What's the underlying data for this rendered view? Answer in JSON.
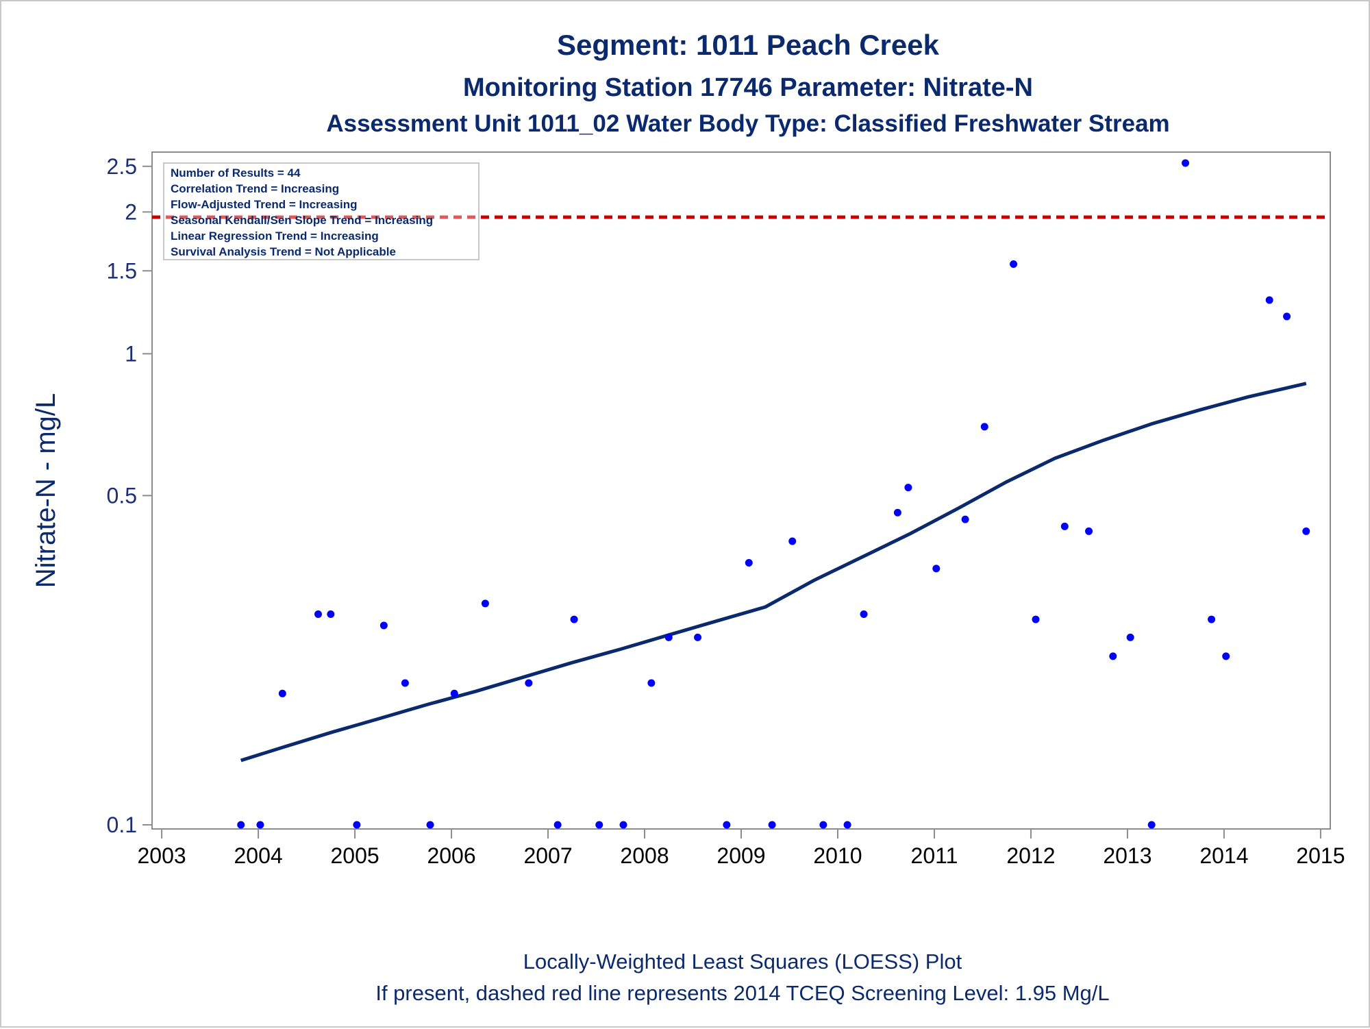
{
  "chart_data": {
    "type": "scatter",
    "title": "Segment: 1011  Peach Creek",
    "subtitle1": "Monitoring Station 17746 Parameter: Nitrate-N",
    "subtitle2": "Assessment Unit 1011_02   Water Body Type: Classified Freshwater Stream",
    "ylabel": "Nitrate-N - mg/L",
    "xlabel": "",
    "yscale": "log",
    "ylim": [
      0.098,
      2.68
    ],
    "xlim": [
      2002.9,
      2015.1
    ],
    "xticks": [
      "2003",
      "2004",
      "2005",
      "2006",
      "2007",
      "2008",
      "2009",
      "2010",
      "2011",
      "2012",
      "2013",
      "2014",
      "2015"
    ],
    "xtick_values": [
      2003,
      2004,
      2005,
      2006,
      2007,
      2008,
      2009,
      2010,
      2011,
      2012,
      2013,
      2014,
      2015
    ],
    "yticks": [
      "0.1",
      "0.5",
      "1",
      "1.5",
      "2",
      "2.5"
    ],
    "ytick_values": [
      0.1,
      0.5,
      1,
      1.5,
      2,
      2.5
    ],
    "grid": false,
    "stats": [
      "Number of Results = 44",
      "Correlation Trend = Increasing",
      "Flow-Adjusted Trend = Increasing",
      "Seasonal Kendall/Sen Slope Trend = Increasing",
      "Linear Regression Trend = Increasing",
      "Survival Analysis Trend = Not Applicable"
    ],
    "stats_placement": "top-left",
    "screening_level": 1.95,
    "screening_color": "#cc0000",
    "point_color": "#0000ff",
    "loess_color": "#0b2a6e",
    "series": [
      {
        "type": "scatter",
        "x": [
          2003.82,
          2004.02,
          2004.25,
          2004.62,
          2004.75,
          2005.02,
          2005.3,
          2005.52,
          2005.78,
          2006.03,
          2006.35,
          2006.8,
          2007.1,
          2007.27,
          2007.53,
          2007.78,
          2008.07,
          2008.25,
          2008.55,
          2008.85,
          2009.08,
          2009.32,
          2009.53,
          2009.85,
          2010.1,
          2010.27,
          2010.62,
          2010.73,
          2011.02,
          2011.32,
          2011.52,
          2011.82,
          2012.05,
          2012.35,
          2012.6,
          2012.85,
          2013.03,
          2013.25,
          2013.6,
          2013.87,
          2014.02,
          2014.47,
          2014.65,
          2014.85
        ],
        "y": [
          0.1,
          0.1,
          0.19,
          0.28,
          0.28,
          0.1,
          0.265,
          0.2,
          0.1,
          0.19,
          0.295,
          0.2,
          0.1,
          0.273,
          0.1,
          0.1,
          0.2,
          0.25,
          0.25,
          0.1,
          0.36,
          0.1,
          0.4,
          0.1,
          0.1,
          0.28,
          0.46,
          0.52,
          0.35,
          0.445,
          0.7,
          1.55,
          0.273,
          0.43,
          0.42,
          0.228,
          0.25,
          0.1,
          2.54,
          0.273,
          0.228,
          1.3,
          1.2,
          0.42
        ]
      },
      {
        "type": "line",
        "name": "",
        "x": [
          2003.82,
          2004.25,
          2004.75,
          2005.25,
          2005.75,
          2006.25,
          2006.75,
          2007.25,
          2007.75,
          2008.25,
          2008.75,
          2009.25,
          2009.75,
          2010.25,
          2010.75,
          2011.25,
          2011.75,
          2012.25,
          2012.75,
          2013.25,
          2013.75,
          2014.25,
          2014.85
        ],
        "y": [
          0.137,
          0.146,
          0.157,
          0.168,
          0.18,
          0.192,
          0.206,
          0.221,
          0.236,
          0.253,
          0.271,
          0.29,
          0.33,
          0.37,
          0.415,
          0.47,
          0.535,
          0.6,
          0.655,
          0.71,
          0.76,
          0.81,
          0.865
        ]
      }
    ],
    "footnote1": "Locally-Weighted Least Squares (LOESS) Plot",
    "footnote2": "If present, dashed red line represents 2014 TCEQ Screening Level: 1.95 Mg/L"
  }
}
